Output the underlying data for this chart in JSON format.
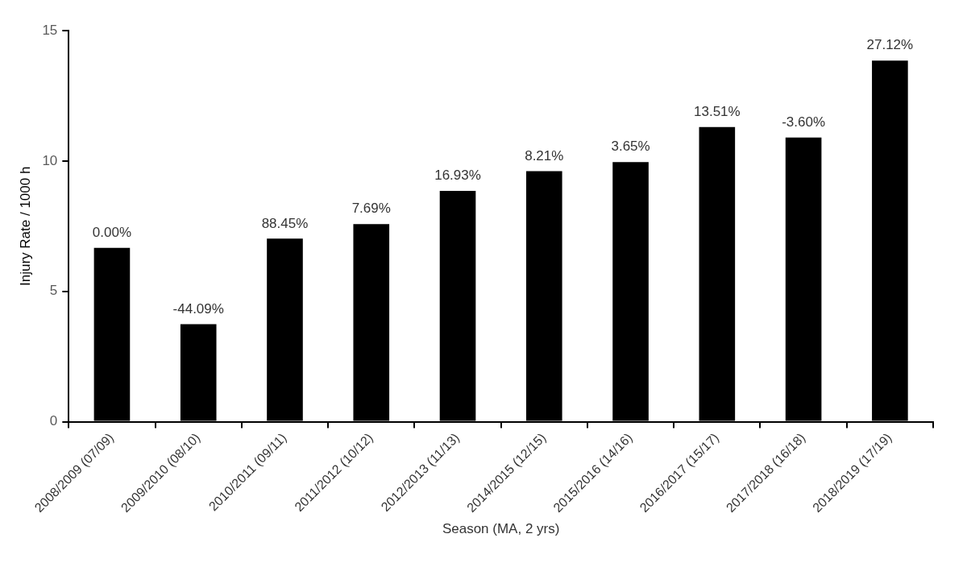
{
  "chart_data": {
    "type": "bar",
    "xlabel": "Season (MA, 2 yrs)",
    "ylabel": "Injury Rate / 1000 h",
    "categories": [
      "2008/2009 (07/09)",
      "2009/2010 (08/10)",
      "2010/2011 (09/11)",
      "2011/2012 (10/12)",
      "2012/2013 (11/13)",
      "2014/2015 (12/15)",
      "2015/2016 (14/16)",
      "2016/2017 (15/17)",
      "2017/2018 (16/18)",
      "2018/2019 (17/19)"
    ],
    "values": [
      6.67,
      3.74,
      7.02,
      7.58,
      8.85,
      9.61,
      9.96,
      11.3,
      10.9,
      13.85
    ],
    "annotations": [
      {
        "text": "0.00%",
        "x": "2008/2009 (07/09)",
        "y": 6.67
      },
      {
        "text": "-44.09%",
        "x": "2009/2010 (08/10)",
        "y": 3.74
      },
      {
        "text": "88.45%",
        "x": "2010/2011 (09/11)",
        "y": 7.02
      },
      {
        "text": "7.69%",
        "x": "2011/2012 (10/12)",
        "y": 7.58
      },
      {
        "text": "16.93%",
        "x": "2012/2013 (11/13)",
        "y": 8.85
      },
      {
        "text": "8.21%",
        "x": "2014/2015 (12/15)",
        "y": 9.61
      },
      {
        "text": "3.65%",
        "x": "2015/2016 (14/16)",
        "y": 9.96
      },
      {
        "text": "13.51%",
        "x": "2016/2017 (15/17)",
        "y": 11.3
      },
      {
        "text": "-3.60%",
        "x": "2017/2018 (16/18)",
        "y": 10.9
      },
      {
        "text": "27.12%",
        "x": "2018/2019 (17/19)",
        "y": 13.85
      }
    ],
    "color": "#000000",
    "ylim": [
      0,
      15
    ],
    "yticks": [
      0,
      5,
      10,
      15
    ],
    "grid": false,
    "legend": false
  }
}
